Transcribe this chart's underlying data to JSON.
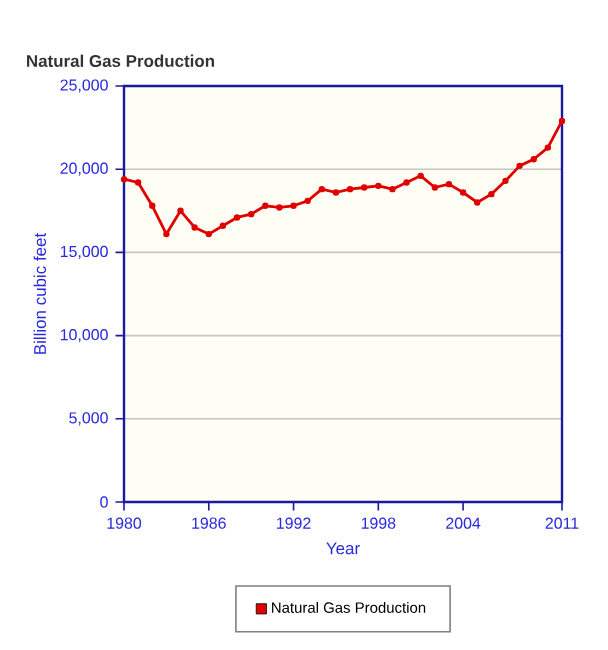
{
  "chart_data": {
    "type": "line",
    "title": "Natural Gas Production",
    "xlabel": "Year",
    "ylabel": "Billion cubic feet",
    "x": [
      1980,
      1981,
      1982,
      1983,
      1984,
      1985,
      1986,
      1987,
      1988,
      1989,
      1990,
      1991,
      1992,
      1993,
      1994,
      1995,
      1996,
      1997,
      1998,
      1999,
      2000,
      2001,
      2002,
      2003,
      2004,
      2005,
      2006,
      2007,
      2008,
      2009,
      2010,
      2011
    ],
    "series": [
      {
        "name": "Natural Gas Production",
        "color": "#e00000",
        "values": [
          19400,
          19200,
          17800,
          16100,
          17500,
          16500,
          16100,
          16600,
          17100,
          17300,
          17800,
          17700,
          17800,
          18100,
          18800,
          18600,
          18800,
          18900,
          19000,
          18800,
          19200,
          19600,
          18900,
          19100,
          18600,
          18000,
          18500,
          19300,
          20200,
          20600,
          21300,
          22900
        ]
      }
    ],
    "xlim": [
      1980,
      2011
    ],
    "ylim": [
      0,
      25000
    ],
    "xticks": [
      1980,
      1986,
      1992,
      1998,
      2004,
      2011
    ],
    "yticks": [
      {
        "value": 0,
        "label": "0"
      },
      {
        "value": 5000,
        "label": "5,000"
      },
      {
        "value": 10000,
        "label": "10,000"
      },
      {
        "value": 15000,
        "label": "15,000"
      },
      {
        "value": 20000,
        "label": "20,000"
      },
      {
        "value": 25000,
        "label": "25,000"
      }
    ],
    "grid": "y",
    "legend": "bottom",
    "marker": "circle",
    "line_style": "solid"
  }
}
